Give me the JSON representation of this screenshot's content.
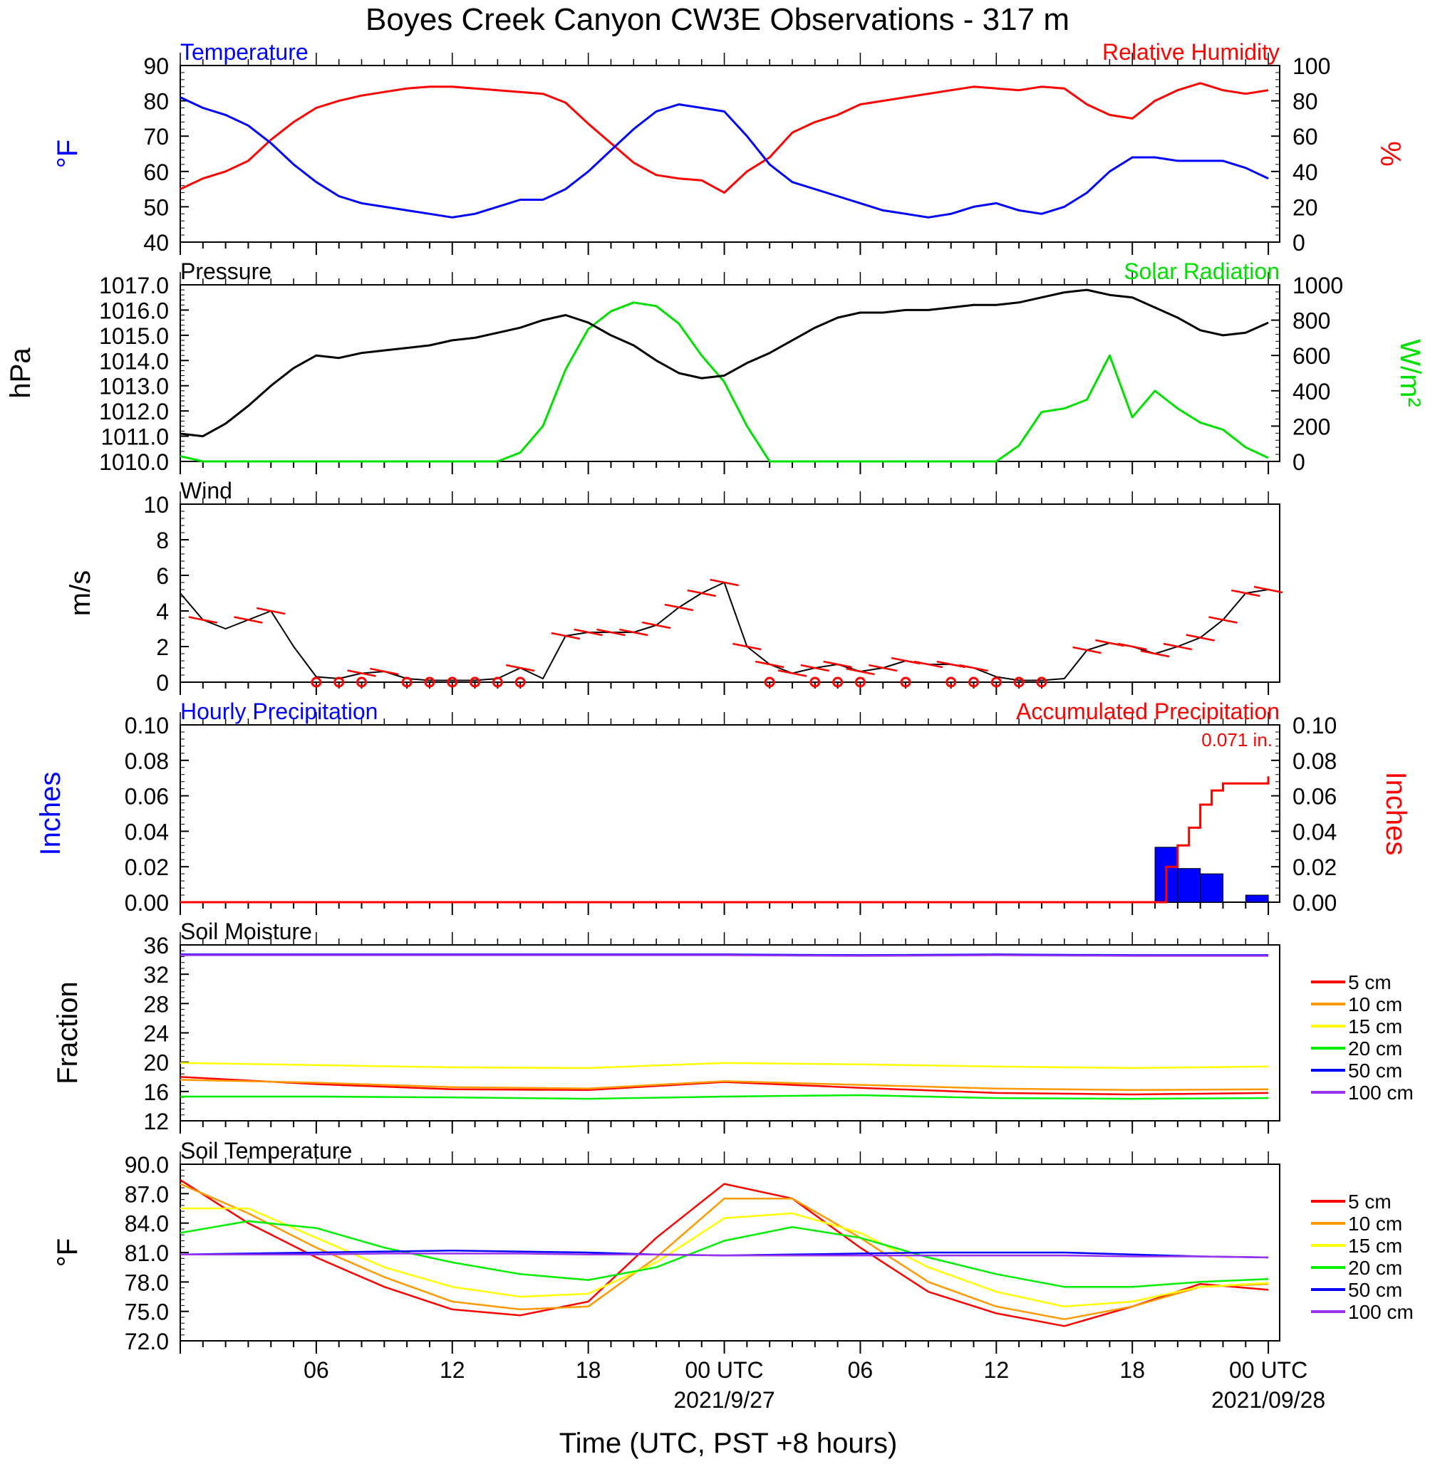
{
  "title": "Boyes Creek Canyon CW3E Observations - 317 m",
  "x_axis": {
    "label": "Time (UTC, PST +8 hours)",
    "tick_labels": [
      "06",
      "12",
      "18",
      "00 UTC",
      "06",
      "12",
      "18",
      "00 UTC"
    ],
    "date_labels": [
      "2021/9/27",
      "2021/09/28"
    ]
  },
  "colors": {
    "temperature": "#0000ff",
    "relative_humidity": "#ff0000",
    "pressure": "#000000",
    "solar_radiation": "#00e000",
    "wind": "#000000",
    "wind_barb": "#ff0000",
    "hourly_precip": "#0000ff",
    "accum_precip": "#ff0000",
    "depth_5cm": "#ff0000",
    "depth_10cm": "#ff9900",
    "depth_15cm": "#ffff00",
    "depth_20cm": "#00ee00",
    "depth_50cm": "#0000ff",
    "depth_100cm": "#9933ee"
  },
  "chart_data": [
    {
      "type": "line",
      "title_left": "Temperature",
      "title_right": "Relative Humidity",
      "ylabel_left": "°F",
      "ylabel_right": "%",
      "ylim_left": [
        40,
        90
      ],
      "ylim_right": [
        0,
        100
      ],
      "ytick_labels_left": [
        "40",
        "50",
        "60",
        "70",
        "80",
        "90"
      ],
      "ytick_labels_right": [
        "0",
        "20",
        "40",
        "60",
        "80",
        "100"
      ],
      "x_hours": [
        0,
        1,
        2,
        3,
        4,
        5,
        6,
        7,
        8,
        9,
        10,
        11,
        12,
        13,
        14,
        15,
        16,
        17,
        18,
        19,
        20,
        21,
        22,
        23,
        24,
        25,
        26,
        27,
        28,
        29,
        30,
        31,
        32,
        33,
        34,
        35,
        36,
        37,
        38,
        39,
        40,
        41,
        42,
        43,
        44,
        45,
        46,
        47,
        48
      ],
      "series": [
        {
          "name": "Temperature",
          "axis": "left",
          "values": [
            81,
            78,
            76,
            73,
            68,
            62,
            57,
            53,
            51,
            50,
            49,
            48,
            47,
            48,
            50,
            52,
            52,
            55,
            60,
            66,
            72,
            77,
            79,
            78,
            77,
            70,
            62,
            57,
            55,
            53,
            51,
            49,
            48,
            47,
            48,
            50,
            51,
            49,
            48,
            50,
            54,
            60,
            64,
            64,
            63,
            63,
            63,
            61,
            58
          ]
        },
        {
          "name": "Relative Humidity",
          "axis": "right",
          "values": [
            30,
            36,
            40,
            46,
            58,
            68,
            76,
            80,
            83,
            85,
            87,
            88,
            88,
            87,
            86,
            85,
            84,
            79,
            67,
            56,
            45,
            38,
            36,
            35,
            28,
            40,
            48,
            62,
            68,
            72,
            78,
            80,
            82,
            84,
            86,
            88,
            87,
            86,
            88,
            87,
            78,
            72,
            70,
            80,
            86,
            90,
            86,
            84,
            86
          ]
        }
      ]
    },
    {
      "type": "line",
      "title_left": "Pressure",
      "title_right": "Solar Radiation",
      "ylabel_left": "hPa",
      "ylabel_right": "W/m²",
      "ylim_left": [
        1010,
        1017
      ],
      "ylim_right": [
        0,
        1000
      ],
      "ytick_labels_left": [
        "1010.0",
        "1011.0",
        "1012.0",
        "1013.0",
        "1014.0",
        "1015.0",
        "1016.0",
        "1017.0"
      ],
      "ytick_labels_right": [
        "0",
        "200",
        "400",
        "600",
        "800",
        "1000"
      ],
      "x_hours": [
        0,
        1,
        2,
        3,
        4,
        5,
        6,
        7,
        8,
        9,
        10,
        11,
        12,
        13,
        14,
        15,
        16,
        17,
        18,
        19,
        20,
        21,
        22,
        23,
        24,
        25,
        26,
        27,
        28,
        29,
        30,
        31,
        32,
        33,
        34,
        35,
        36,
        37,
        38,
        39,
        40,
        41,
        42,
        43,
        44,
        45,
        46,
        47,
        48
      ],
      "series": [
        {
          "name": "Pressure",
          "axis": "left",
          "values": [
            1011.1,
            1011.0,
            1011.5,
            1012.2,
            1013.0,
            1013.7,
            1014.2,
            1014.1,
            1014.3,
            1014.4,
            1014.5,
            1014.6,
            1014.8,
            1014.9,
            1015.1,
            1015.3,
            1015.6,
            1015.8,
            1015.5,
            1015.0,
            1014.6,
            1014.0,
            1013.5,
            1013.3,
            1013.4,
            1013.9,
            1014.3,
            1014.8,
            1015.3,
            1015.7,
            1015.9,
            1015.9,
            1016.0,
            1016.0,
            1016.1,
            1016.2,
            1016.2,
            1016.3,
            1016.5,
            1016.7,
            1016.8,
            1016.6,
            1016.5,
            1016.1,
            1015.7,
            1015.2,
            1015.0,
            1015.1,
            1015.5
          ]
        },
        {
          "name": "Solar Radiation",
          "axis": "right",
          "values": [
            30,
            0,
            0,
            0,
            0,
            0,
            0,
            0,
            0,
            0,
            0,
            0,
            0,
            0,
            0,
            50,
            200,
            520,
            750,
            850,
            900,
            880,
            780,
            600,
            450,
            200,
            0,
            0,
            0,
            0,
            0,
            0,
            0,
            0,
            0,
            0,
            0,
            90,
            280,
            300,
            350,
            600,
            250,
            400,
            300,
            220,
            180,
            80,
            20
          ]
        }
      ]
    },
    {
      "type": "line",
      "title": "Wind",
      "ylabel": "m/s",
      "ylim": [
        0,
        10
      ],
      "ytick_labels": [
        "0",
        "2",
        "4",
        "6",
        "8",
        "10"
      ],
      "x_hours": [
        0,
        1,
        2,
        3,
        4,
        5,
        6,
        7,
        8,
        9,
        10,
        11,
        12,
        13,
        14,
        15,
        16,
        17,
        18,
        19,
        20,
        21,
        22,
        23,
        24,
        25,
        26,
        27,
        28,
        29,
        30,
        31,
        32,
        33,
        34,
        35,
        36,
        37,
        38,
        39,
        40,
        41,
        42,
        43,
        44,
        45,
        46,
        47,
        48
      ],
      "series": [
        {
          "name": "Wind speed",
          "values": [
            5.0,
            3.5,
            3.0,
            3.5,
            4.0,
            2.0,
            0.3,
            0.2,
            0.5,
            0.6,
            0.2,
            0.1,
            0.1,
            0.1,
            0.2,
            0.8,
            0.2,
            2.6,
            2.8,
            2.8,
            2.8,
            3.2,
            4.2,
            5.0,
            5.6,
            2.0,
            1.0,
            0.5,
            0.8,
            1.0,
            0.6,
            0.8,
            1.2,
            1.0,
            1.0,
            0.8,
            0.3,
            0.1,
            0.1,
            0.2,
            1.8,
            2.2,
            2.0,
            1.6,
            2.0,
            2.5,
            3.5,
            5.0,
            5.2
          ]
        }
      ],
      "barb_hours": [
        1,
        3,
        4,
        7,
        8,
        9,
        11,
        12,
        13,
        14,
        15,
        16,
        17,
        18,
        19,
        20,
        21,
        22,
        23,
        24,
        25,
        26,
        27,
        28,
        29,
        30,
        31,
        32,
        33,
        34,
        35,
        36,
        37,
        38,
        39,
        40,
        41,
        42,
        43,
        44,
        45,
        46,
        47,
        48
      ],
      "calm_hours": [
        6,
        7,
        8,
        10,
        11,
        12,
        13,
        14,
        15,
        26,
        28,
        29,
        30,
        32,
        34,
        35,
        36,
        37,
        38
      ]
    },
    {
      "type": "bar",
      "title_left": "Hourly Precipitation",
      "title_right": "Accumulated Precipitation",
      "annotation": "0.071 in.",
      "ylabel_left": "Inches",
      "ylabel_right": "Inches",
      "ylim": [
        0,
        0.1
      ],
      "ytick_labels": [
        "0.00",
        "0.02",
        "0.04",
        "0.06",
        "0.08",
        "0.10"
      ],
      "hourly_bars": [
        {
          "start_hour": 43,
          "value": 0.031
        },
        {
          "start_hour": 44,
          "value": 0.019
        },
        {
          "start_hour": 45,
          "value": 0.016
        },
        {
          "start_hour": 47,
          "value": 0.004
        }
      ],
      "accumulated": {
        "x_hours": [
          0,
          43,
          43.5,
          44,
          44.5,
          45,
          45.5,
          46,
          47,
          47.9,
          48
        ],
        "values": [
          0,
          0,
          0.02,
          0.032,
          0.042,
          0.055,
          0.063,
          0.067,
          0.067,
          0.067,
          0.071
        ]
      }
    },
    {
      "type": "line",
      "title": "Soil Moisture",
      "ylabel": "Fraction",
      "ylim": [
        12,
        36
      ],
      "ytick_labels": [
        "12",
        "16",
        "20",
        "24",
        "28",
        "32",
        "36"
      ],
      "x_hours": [
        0,
        6,
        12,
        18,
        24,
        30,
        36,
        42,
        48
      ],
      "series": [
        {
          "name": "5 cm",
          "values": [
            18.0,
            17.0,
            16.3,
            16.2,
            17.3,
            16.5,
            15.8,
            15.6,
            15.8
          ]
        },
        {
          "name": "10 cm",
          "values": [
            17.6,
            17.2,
            16.6,
            16.4,
            17.4,
            16.9,
            16.4,
            16.2,
            16.3
          ]
        },
        {
          "name": "15 cm",
          "values": [
            19.9,
            19.6,
            19.3,
            19.2,
            19.9,
            19.7,
            19.4,
            19.2,
            19.4
          ]
        },
        {
          "name": "20 cm",
          "values": [
            15.3,
            15.3,
            15.2,
            15.0,
            15.3,
            15.5,
            15.1,
            15.0,
            15.1
          ]
        },
        {
          "name": "50 cm",
          "values": [
            34.7,
            34.7,
            34.7,
            34.7,
            34.7,
            34.6,
            34.7,
            34.6,
            34.6
          ]
        },
        {
          "name": "100 cm",
          "values": [
            34.6,
            34.6,
            34.6,
            34.6,
            34.6,
            34.5,
            34.6,
            34.5,
            34.5
          ]
        }
      ],
      "legend": [
        "5 cm",
        "10 cm",
        "15 cm",
        "20 cm",
        "50 cm",
        "100 cm"
      ]
    },
    {
      "type": "line",
      "title": "Soil Temperature",
      "ylabel": "°F",
      "ylim": [
        72,
        90
      ],
      "ytick_labels": [
        "72.0",
        "75.0",
        "78.0",
        "81.0",
        "84.0",
        "87.0",
        "90.0"
      ],
      "x_hours": [
        0,
        3,
        6,
        9,
        12,
        15,
        18,
        21,
        24,
        27,
        30,
        33,
        36,
        39,
        42,
        45,
        48
      ],
      "series": [
        {
          "name": "5 cm",
          "values": [
            88.4,
            84.0,
            80.5,
            77.5,
            75.2,
            74.6,
            76.0,
            82.5,
            88.0,
            86.5,
            81.5,
            77.0,
            74.8,
            73.5,
            75.5,
            77.8,
            77.2
          ]
        },
        {
          "name": "10 cm",
          "values": [
            88.0,
            85.0,
            81.5,
            78.5,
            76.0,
            75.2,
            75.5,
            80.5,
            86.5,
            86.5,
            82.5,
            78.0,
            75.5,
            74.2,
            75.5,
            77.5,
            77.8
          ]
        },
        {
          "name": "15 cm",
          "values": [
            85.5,
            85.5,
            82.5,
            79.5,
            77.5,
            76.5,
            76.8,
            80.0,
            84.5,
            85.0,
            83.0,
            79.5,
            77.0,
            75.5,
            76.0,
            77.5,
            77.9
          ]
        },
        {
          "name": "20 cm",
          "values": [
            83.0,
            84.2,
            83.5,
            81.5,
            80.0,
            78.8,
            78.2,
            79.5,
            82.2,
            83.6,
            82.5,
            80.5,
            78.8,
            77.5,
            77.5,
            78.0,
            78.3
          ]
        },
        {
          "name": "50 cm",
          "values": [
            80.8,
            80.9,
            81.0,
            81.1,
            81.2,
            81.1,
            81.0,
            80.8,
            80.7,
            80.8,
            80.9,
            81.0,
            81.0,
            81.0,
            80.8,
            80.6,
            80.5
          ]
        },
        {
          "name": "100 cm",
          "values": [
            80.8,
            80.8,
            80.8,
            80.9,
            80.9,
            80.9,
            80.8,
            80.8,
            80.7,
            80.7,
            80.7,
            80.7,
            80.7,
            80.7,
            80.6,
            80.6,
            80.5
          ]
        }
      ],
      "legend": [
        "5 cm",
        "10 cm",
        "15 cm",
        "20 cm",
        "50 cm",
        "100 cm"
      ]
    }
  ]
}
